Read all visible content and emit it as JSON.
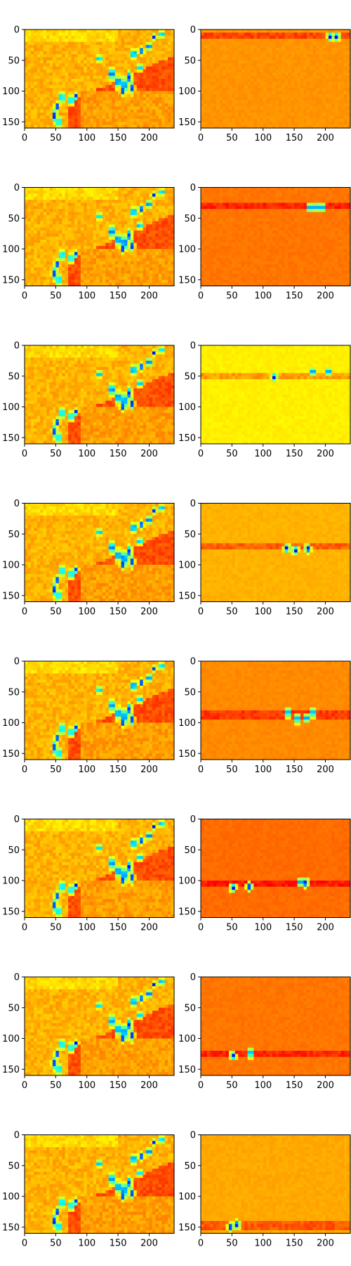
{
  "figure": {
    "rows": 8,
    "cols": 2,
    "colormap": "jet",
    "background": "#ffffff"
  },
  "chart_data": {
    "type": "heatmap",
    "colormap": "jet",
    "x_range": [
      0,
      240
    ],
    "y_range": [
      160,
      0
    ],
    "x_ticks": [
      "0",
      "50",
      "100",
      "150",
      "200"
    ],
    "y_ticks": [
      "0",
      "50",
      "100",
      "150"
    ],
    "panels": [
      {
        "row": 1,
        "col": 1,
        "kind": "composite",
        "base": 0.68,
        "band_y": null,
        "highlight": null
      },
      {
        "row": 1,
        "col": 2,
        "kind": "slice",
        "base": 0.73,
        "band_y": 10,
        "spots": [
          [
            208,
            12
          ],
          [
            218,
            12
          ]
        ]
      },
      {
        "row": 2,
        "col": 1,
        "kind": "composite",
        "base": 0.68,
        "band_y": null
      },
      {
        "row": 2,
        "col": 2,
        "kind": "slice",
        "base": 0.76,
        "band_y": 30,
        "spots": [
          [
            175,
            32
          ],
          [
            185,
            33
          ],
          [
            195,
            32
          ]
        ]
      },
      {
        "row": 3,
        "col": 1,
        "kind": "composite",
        "base": 0.68,
        "band_y": null
      },
      {
        "row": 3,
        "col": 2,
        "kind": "slice",
        "base": 0.64,
        "band_y": 50,
        "spots": [
          [
            118,
            52
          ],
          [
            180,
            42
          ],
          [
            205,
            42
          ]
        ]
      },
      {
        "row": 4,
        "col": 1,
        "kind": "composite",
        "base": 0.68,
        "band_y": null
      },
      {
        "row": 4,
        "col": 2,
        "kind": "slice",
        "base": 0.7,
        "band_y": 70,
        "spots": [
          [
            138,
            73
          ],
          [
            152,
            77
          ],
          [
            172,
            74
          ]
        ]
      },
      {
        "row": 5,
        "col": 1,
        "kind": "composite",
        "base": 0.68,
        "band_y": null
      },
      {
        "row": 5,
        "col": 2,
        "kind": "slice",
        "base": 0.74,
        "band_y": 88,
        "spots": [
          [
            140,
            84
          ],
          [
            155,
            94
          ],
          [
            170,
            92
          ],
          [
            180,
            84
          ]
        ]
      },
      {
        "row": 6,
        "col": 1,
        "kind": "composite",
        "base": 0.68,
        "band_y": null
      },
      {
        "row": 6,
        "col": 2,
        "kind": "slice",
        "base": 0.77,
        "band_y": 105,
        "spots": [
          [
            52,
            112
          ],
          [
            78,
            110
          ],
          [
            160,
            102
          ],
          [
            168,
            104
          ]
        ]
      },
      {
        "row": 7,
        "col": 1,
        "kind": "composite",
        "base": 0.68,
        "band_y": null
      },
      {
        "row": 7,
        "col": 2,
        "kind": "slice",
        "base": 0.76,
        "band_y": 125,
        "spots": [
          [
            52,
            128
          ],
          [
            80,
            124
          ]
        ]
      },
      {
        "row": 8,
        "col": 1,
        "kind": "composite",
        "base": 0.68,
        "band_y": null
      },
      {
        "row": 8,
        "col": 2,
        "kind": "slice",
        "base": 0.71,
        "band_y": 148,
        "spots": [
          [
            48,
            150
          ],
          [
            58,
            146
          ]
        ]
      }
    ]
  }
}
